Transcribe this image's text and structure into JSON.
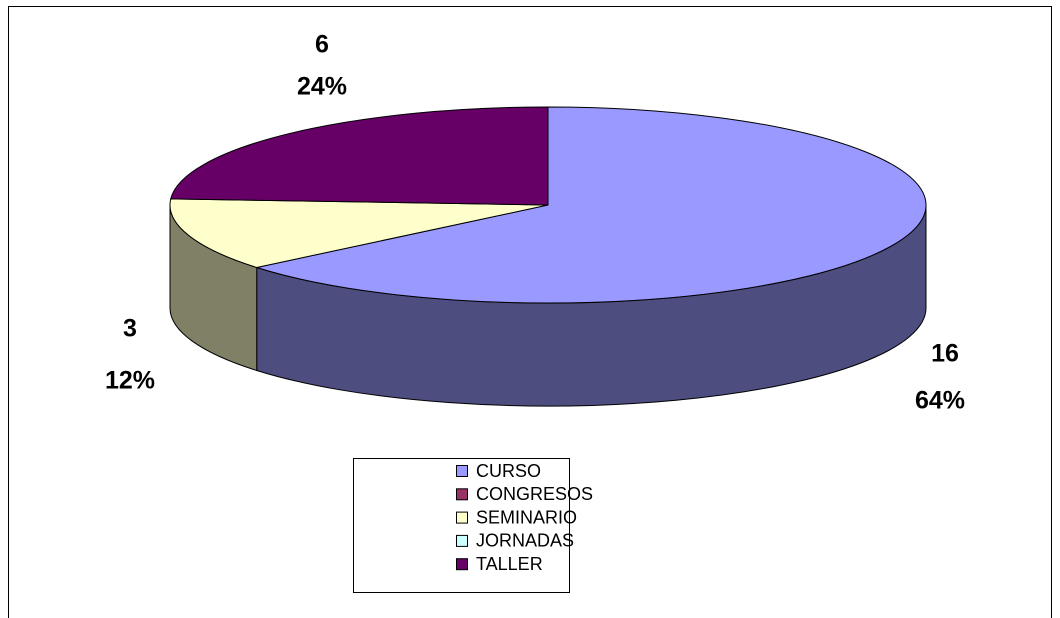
{
  "chart_data": {
    "type": "pie3d",
    "categories": [
      "CURSO",
      "CONGRESOS",
      "SEMINARIO",
      "JORNADAS",
      "TALLER"
    ],
    "values": [
      16,
      0,
      3,
      0,
      6
    ],
    "value_labels": [
      "16",
      null,
      "3",
      null,
      "6"
    ],
    "percent_labels": [
      "64%",
      null,
      "12%",
      null,
      "24%"
    ],
    "colors": [
      "#9999ff",
      "#993366",
      "#ffffcc",
      "#ccffff",
      "#660066"
    ],
    "legend": "bottom"
  }
}
